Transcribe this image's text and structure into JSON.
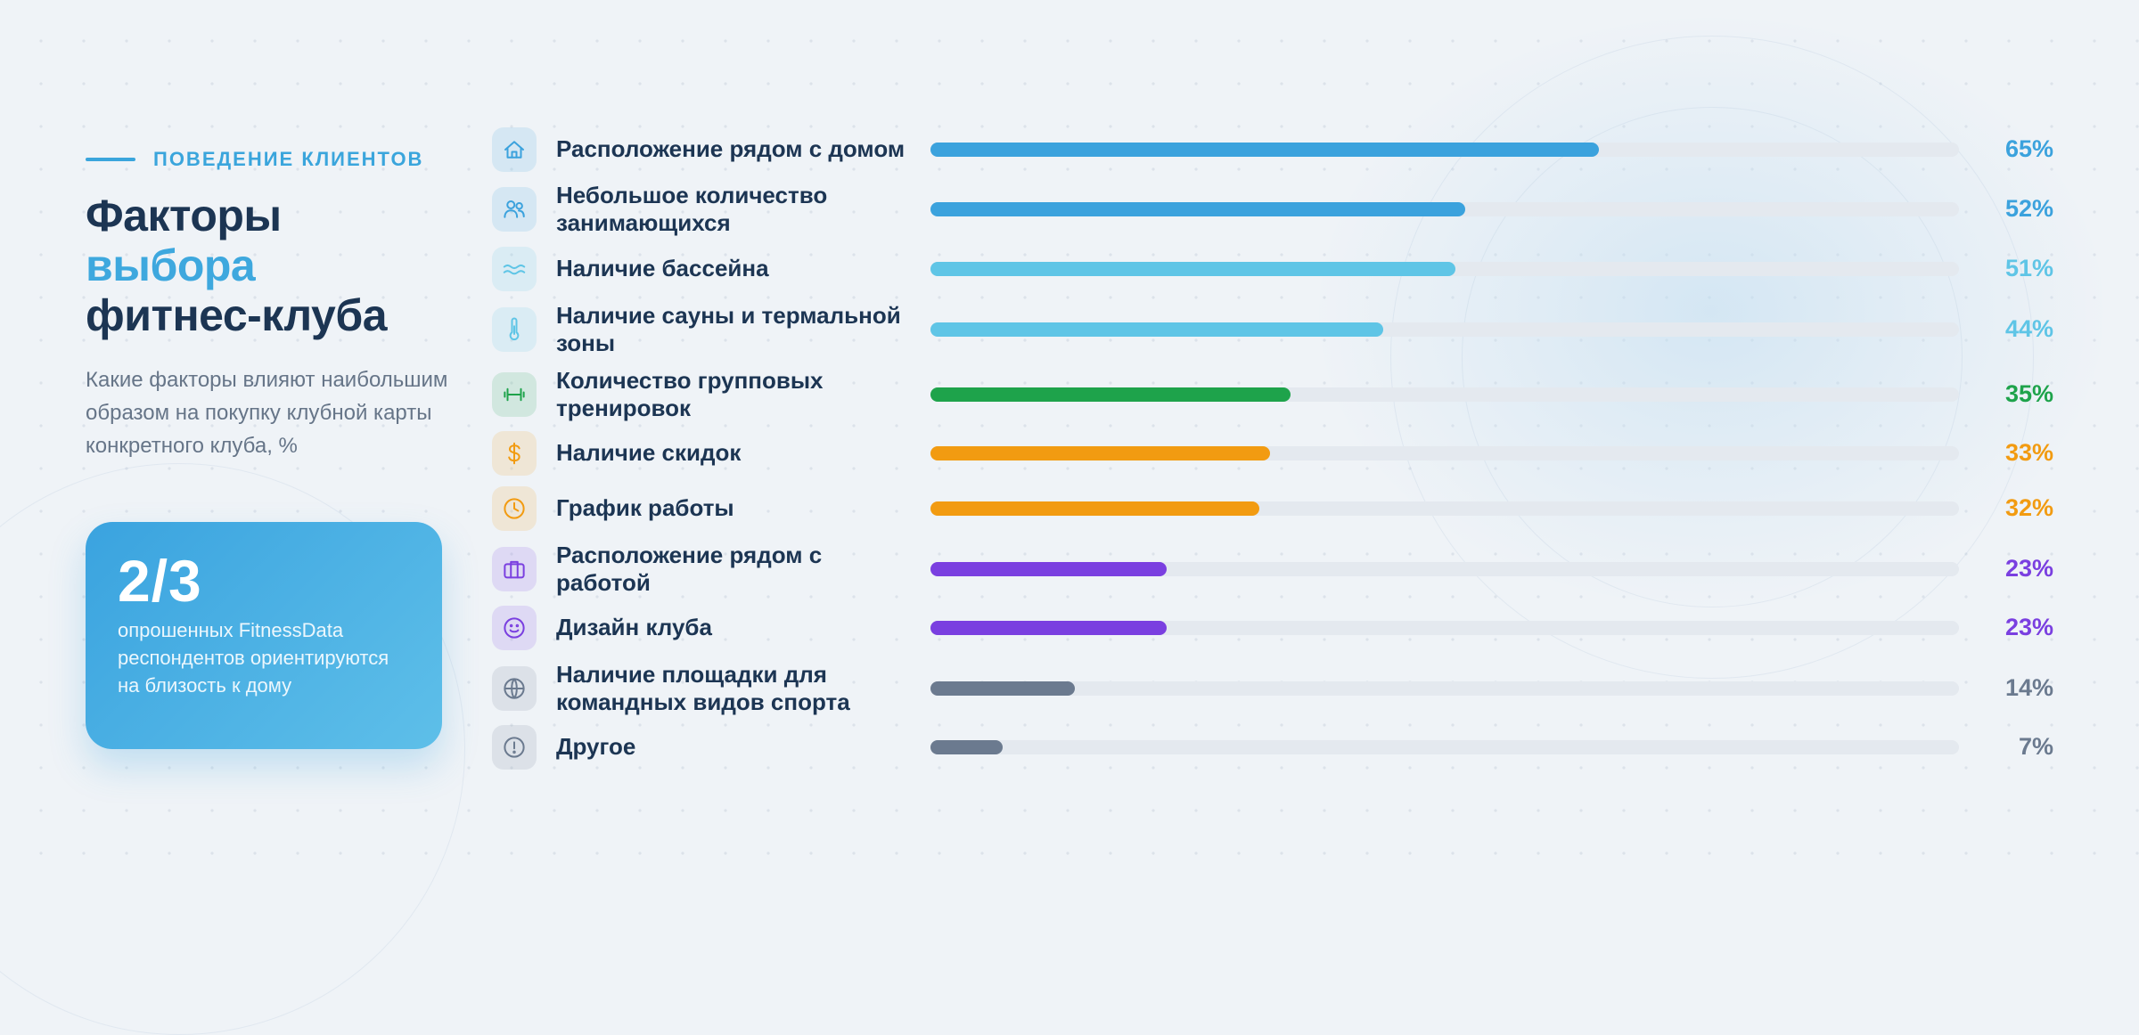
{
  "eyebrow": "ПОВЕДЕНИЕ КЛИЕНТОВ",
  "title": {
    "line1": "Факторы",
    "line2": "выбора",
    "line3": "фитнес-клуба"
  },
  "subtitle": "Какие факторы влияют наибольшим образом на покупку клубной карты конкретного клуба, %",
  "highlight": {
    "value": "2/3",
    "text": "опрошенных FitnessData респондентов ориентируются на близость к дому"
  },
  "colors": {
    "blue": "#3ba2dd",
    "light_blue": "#5fc5e6",
    "green": "#1ea34b",
    "orange": "#f29b11",
    "purple": "#7a3fe0",
    "gray": "#6b7a8f",
    "title_dark": "#1c3553",
    "accent": "#3ea8de"
  },
  "chart_data": {
    "type": "bar",
    "orientation": "horizontal",
    "xlim": [
      0,
      100
    ],
    "unit": "%",
    "categories": [
      "Расположение рядом с домом",
      "Небольшое количество занимающихся",
      "Наличие бассейна",
      "Наличие сауны и термальной зоны",
      "Количество групповых тренировок",
      "Наличие скидок",
      "График работы",
      "Расположение рядом с работой",
      "Дизайн клуба",
      "Наличие площадки для командных видов спорта",
      "Другое"
    ],
    "values": [
      65,
      52,
      51,
      44,
      35,
      33,
      32,
      23,
      23,
      14,
      7
    ],
    "value_labels": [
      "65%",
      "52%",
      "51%",
      "44%",
      "35%",
      "33%",
      "32%",
      "23%",
      "23%",
      "14%",
      "7%"
    ],
    "bar_colors": [
      "#3ba2dd",
      "#3ba2dd",
      "#5fc5e6",
      "#5fc5e6",
      "#1ea34b",
      "#f29b11",
      "#f29b11",
      "#7a3fe0",
      "#7a3fe0",
      "#6b7a8f",
      "#6b7a8f"
    ],
    "icons": [
      "home-icon",
      "users-icon",
      "waves-icon",
      "thermometer-icon",
      "dumbbell-icon",
      "dollar-icon",
      "clock-icon",
      "briefcase-icon",
      "smile-icon",
      "globe-icon",
      "alert-circle-icon"
    ]
  }
}
